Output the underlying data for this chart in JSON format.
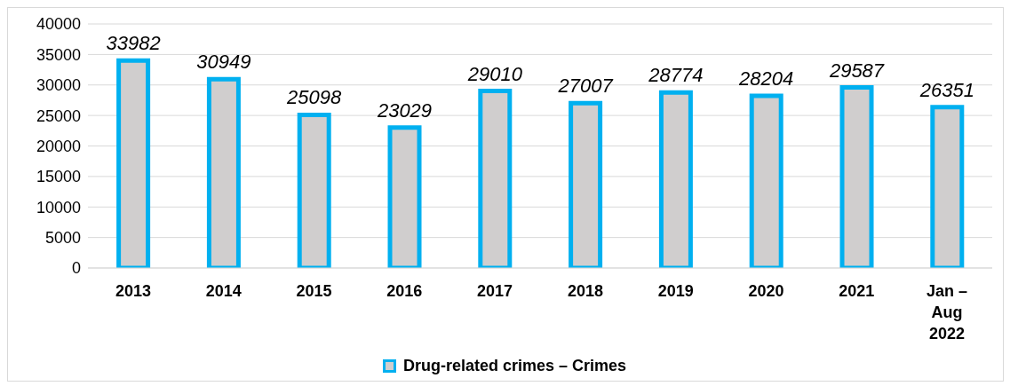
{
  "chart_data": {
    "type": "bar",
    "categories": [
      "2013",
      "2014",
      "2015",
      "2016",
      "2017",
      "2018",
      "2019",
      "2020",
      "2021",
      "Jan – Aug 2022"
    ],
    "series": [
      {
        "name": "Drug-related crimes – Crimes",
        "color": "#d0cece",
        "values": [
          33982,
          30949,
          25098,
          23029,
          29010,
          27007,
          28774,
          28204,
          29587,
          26351
        ]
      }
    ],
    "ylim": [
      0,
      40000
    ],
    "yticks": [
      0,
      5000,
      10000,
      15000,
      20000,
      25000,
      30000,
      35000,
      40000
    ],
    "grid": "y",
    "legend": "bottom",
    "data_labels": true
  }
}
